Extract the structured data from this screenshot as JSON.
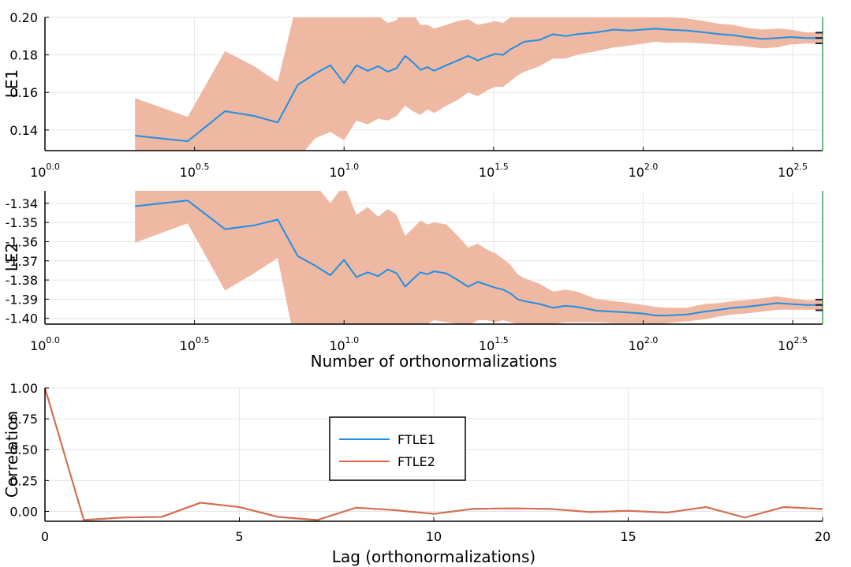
{
  "chart_data": [
    {
      "type": "line",
      "ylabel": "LE1",
      "x_scale": "log10",
      "xlim": [
        1,
        398
      ],
      "ylim": [
        0.129,
        0.2
      ],
      "yticks": [
        {
          "v": 0.14,
          "label": "0.14"
        },
        {
          "v": 0.16,
          "label": "0.16"
        },
        {
          "v": 0.18,
          "label": "0.18"
        },
        {
          "v": 0.2,
          "label": "0.20"
        }
      ],
      "xticks": [
        {
          "v": 1,
          "base": "10",
          "exp": "0.0"
        },
        {
          "v": 3.162,
          "base": "10",
          "exp": "0.5"
        },
        {
          "v": 10,
          "base": "10",
          "exp": "1.0"
        },
        {
          "v": 31.62,
          "base": "10",
          "exp": "1.5"
        },
        {
          "v": 100,
          "base": "10",
          "exp": "2.0"
        },
        {
          "v": 316.2,
          "base": "10",
          "exp": "2.5"
        }
      ],
      "grid": true,
      "final_marker_x": 398,
      "final_value": 0.189,
      "series": [
        {
          "color": "#1f8fe5",
          "band_color": "#efb8a3",
          "x": [
            2,
            3,
            4,
            5,
            6,
            7,
            8,
            9,
            10,
            11,
            12,
            13,
            14,
            15,
            16,
            17,
            18,
            19,
            20,
            22,
            24,
            26,
            28,
            30,
            32,
            34,
            36,
            38,
            40,
            45,
            50,
            55,
            60,
            70,
            80,
            90,
            100,
            110,
            120,
            140,
            160,
            180,
            200,
            220,
            250,
            280,
            310,
            350,
            398
          ],
          "y": [
            0.137,
            0.134,
            0.15,
            0.1475,
            0.144,
            0.164,
            0.17,
            0.1745,
            0.165,
            0.1745,
            0.1715,
            0.174,
            0.171,
            0.173,
            0.1795,
            0.176,
            0.172,
            0.1735,
            0.1715,
            0.1745,
            0.177,
            0.1795,
            0.177,
            0.179,
            0.1805,
            0.18,
            0.183,
            0.185,
            0.187,
            0.188,
            0.191,
            0.19,
            0.191,
            0.192,
            0.1935,
            0.193,
            0.1935,
            0.194,
            0.1935,
            0.193,
            0.192,
            0.191,
            0.1905,
            0.1895,
            0.1885,
            0.189,
            0.1895,
            0.189,
            0.189
          ],
          "lower": [
            0.115,
            0.11,
            0.119,
            0.117,
            0.124,
            0.1245,
            0.1355,
            0.139,
            0.1345,
            0.145,
            0.143,
            0.146,
            0.145,
            0.1475,
            0.153,
            0.15,
            0.148,
            0.151,
            0.149,
            0.153,
            0.156,
            0.16,
            0.158,
            0.161,
            0.163,
            0.163,
            0.166,
            0.169,
            0.171,
            0.174,
            0.178,
            0.178,
            0.18,
            0.182,
            0.184,
            0.185,
            0.186,
            0.187,
            0.1865,
            0.1865,
            0.186,
            0.1855,
            0.185,
            0.1845,
            0.1835,
            0.184,
            0.1855,
            0.186,
            0.186
          ],
          "upper": [
            0.157,
            0.147,
            0.182,
            0.174,
            0.1655,
            0.21,
            0.21,
            0.21,
            0.2,
            0.205,
            0.2,
            0.201,
            0.197,
            0.1985,
            0.206,
            0.202,
            0.196,
            0.196,
            0.194,
            0.196,
            0.198,
            0.199,
            0.196,
            0.197,
            0.198,
            0.197,
            0.2,
            0.201,
            0.203,
            0.202,
            0.204,
            0.202,
            0.202,
            0.202,
            0.203,
            0.201,
            0.201,
            0.201,
            0.2,
            0.1995,
            0.198,
            0.1965,
            0.196,
            0.1945,
            0.1935,
            0.194,
            0.1935,
            0.192,
            0.192
          ]
        }
      ]
    },
    {
      "type": "line",
      "ylabel": "LE2",
      "xlabel": "Number of orthonormalizations",
      "x_scale": "log10",
      "xlim": [
        1,
        398
      ],
      "ylim": [
        -1.403,
        -1.3335
      ],
      "yticks": [
        {
          "v": -1.34,
          "label": "-1.34"
        },
        {
          "v": -1.35,
          "label": "-1.35"
        },
        {
          "v": -1.36,
          "label": "-1.36"
        },
        {
          "v": -1.37,
          "label": "-1.37"
        },
        {
          "v": -1.38,
          "label": "-1.38"
        },
        {
          "v": -1.39,
          "label": "-1.39"
        },
        {
          "v": -1.4,
          "label": "-1.40"
        }
      ],
      "xticks": [
        {
          "v": 1,
          "base": "10",
          "exp": "0.0"
        },
        {
          "v": 3.162,
          "base": "10",
          "exp": "0.5"
        },
        {
          "v": 10,
          "base": "10",
          "exp": "1.0"
        },
        {
          "v": 31.62,
          "base": "10",
          "exp": "1.5"
        },
        {
          "v": 100,
          "base": "10",
          "exp": "2.0"
        },
        {
          "v": 316.2,
          "base": "10",
          "exp": "2.5"
        }
      ],
      "grid": true,
      "final_marker_x": 398,
      "final_value": -1.393,
      "series": [
        {
          "color": "#1f8fe5",
          "band_color": "#efb8a3",
          "x": [
            2,
            3,
            4,
            5,
            6,
            7,
            8,
            9,
            10,
            11,
            12,
            13,
            14,
            15,
            16,
            17,
            18,
            19,
            20,
            22,
            24,
            26,
            28,
            30,
            32,
            34,
            36,
            38,
            40,
            45,
            50,
            55,
            60,
            70,
            80,
            90,
            100,
            110,
            120,
            140,
            160,
            180,
            200,
            220,
            250,
            280,
            310,
            350,
            398
          ],
          "y": [
            -1.3415,
            -1.3385,
            -1.3535,
            -1.3515,
            -1.3485,
            -1.3675,
            -1.3725,
            -1.3775,
            -1.3695,
            -1.3785,
            -1.376,
            -1.378,
            -1.3745,
            -1.3765,
            -1.3835,
            -1.3795,
            -1.376,
            -1.377,
            -1.3755,
            -1.3765,
            -1.38,
            -1.3835,
            -1.381,
            -1.3825,
            -1.384,
            -1.385,
            -1.387,
            -1.39,
            -1.391,
            -1.3925,
            -1.3945,
            -1.3935,
            -1.394,
            -1.396,
            -1.3965,
            -1.397,
            -1.3975,
            -1.3985,
            -1.3985,
            -1.398,
            -1.3965,
            -1.3955,
            -1.3945,
            -1.394,
            -1.393,
            -1.392,
            -1.3925,
            -1.393,
            -1.393
          ],
          "lower": [
            -1.3605,
            -1.3505,
            -1.3855,
            -1.3765,
            -1.3685,
            -1.42,
            -1.42,
            -1.415,
            -1.409,
            -1.411,
            -1.41,
            -1.409,
            -1.406,
            -1.407,
            -1.41,
            -1.406,
            -1.403,
            -1.403,
            -1.401,
            -1.402,
            -1.403,
            -1.404,
            -1.401,
            -1.401,
            -1.402,
            -1.401,
            -1.402,
            -1.403,
            -1.403,
            -1.403,
            -1.403,
            -1.402,
            -1.402,
            -1.402,
            -1.4025,
            -1.4025,
            -1.4025,
            -1.403,
            -1.4025,
            -1.4015,
            -1.4005,
            -1.399,
            -1.398,
            -1.3975,
            -1.3965,
            -1.3955,
            -1.3955,
            -1.3955,
            -1.3955
          ],
          "upper": [
            -1.3225,
            -1.3265,
            -1.3215,
            -1.3265,
            -1.3285,
            -1.33,
            -1.33,
            -1.34,
            -1.33,
            -1.346,
            -1.342,
            -1.347,
            -1.343,
            -1.346,
            -1.357,
            -1.353,
            -1.349,
            -1.351,
            -1.35,
            -1.351,
            -1.357,
            -1.363,
            -1.361,
            -1.364,
            -1.366,
            -1.369,
            -1.372,
            -1.377,
            -1.379,
            -1.382,
            -1.386,
            -1.385,
            -1.386,
            -1.39,
            -1.391,
            -1.392,
            -1.393,
            -1.394,
            -1.3945,
            -1.3945,
            -1.3925,
            -1.392,
            -1.391,
            -1.3905,
            -1.3895,
            -1.3885,
            -1.3895,
            -1.3905,
            -1.3905
          ]
        }
      ]
    },
    {
      "type": "line",
      "xlabel": "Lag (orthonormalizations)",
      "ylabel": "Correlation",
      "xlim": [
        0,
        20
      ],
      "ylim": [
        -0.08,
        1.0
      ],
      "yticks": [
        {
          "v": 0.0,
          "label": "0.00"
        },
        {
          "v": 0.25,
          "label": "0.25"
        },
        {
          "v": 0.5,
          "label": "0.50"
        },
        {
          "v": 0.75,
          "label": "0.75"
        },
        {
          "v": 1.0,
          "label": "1.00"
        }
      ],
      "xticks": [
        {
          "v": 0,
          "label": "0"
        },
        {
          "v": 5,
          "label": "5"
        },
        {
          "v": 10,
          "label": "10"
        },
        {
          "v": 15,
          "label": "15"
        },
        {
          "v": 20,
          "label": "20"
        }
      ],
      "grid": true,
      "legend_position": "upper-center",
      "x": [
        0,
        1,
        2,
        3,
        4,
        5,
        6,
        7,
        8,
        9,
        10,
        11,
        12,
        13,
        14,
        15,
        16,
        17,
        18,
        19,
        20
      ],
      "series": [
        {
          "name": "FTLE1",
          "color": "#1f8fe5",
          "values": [
            1.0,
            -0.07,
            -0.05,
            -0.045,
            0.07,
            0.035,
            -0.045,
            -0.07,
            0.03,
            0.01,
            -0.02,
            0.02,
            0.025,
            0.02,
            -0.005,
            0.005,
            -0.01,
            0.035,
            -0.05,
            0.035,
            0.02
          ]
        },
        {
          "name": "FTLE2",
          "color": "#e06b45",
          "values": [
            1.0,
            -0.07,
            -0.05,
            -0.045,
            0.07,
            0.035,
            -0.045,
            -0.07,
            0.03,
            0.01,
            -0.02,
            0.02,
            0.025,
            0.02,
            -0.005,
            0.005,
            -0.01,
            0.035,
            -0.05,
            0.035,
            0.02
          ]
        }
      ]
    }
  ]
}
